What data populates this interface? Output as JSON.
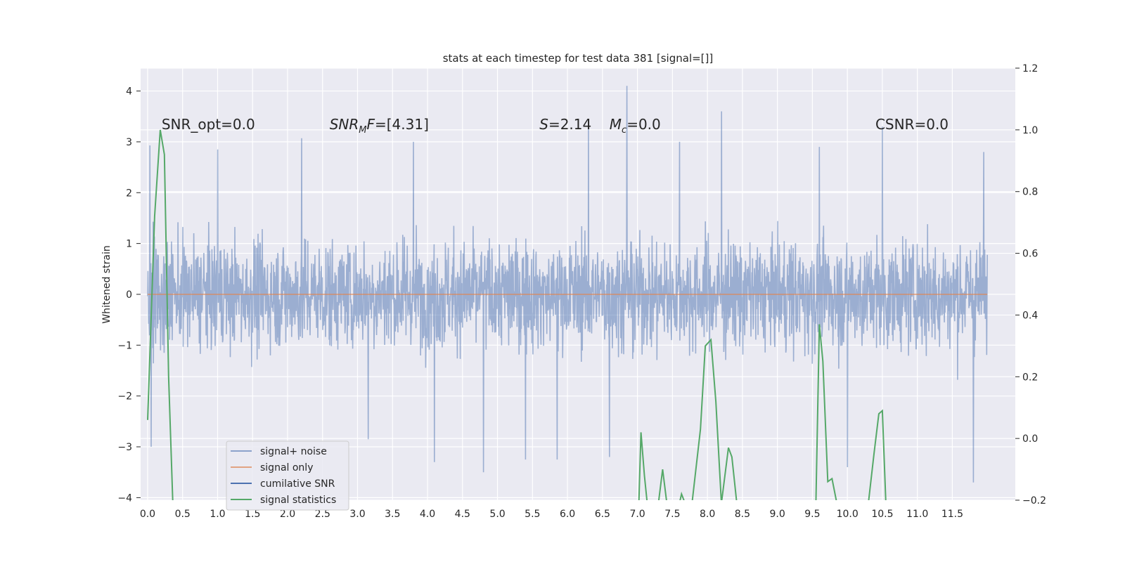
{
  "chart_data": {
    "type": "line",
    "title": "stats at each timestep for test data 381 [signal=[]]",
    "ylabel": "Whitened strain",
    "xlim": [
      -0.1,
      12.4
    ],
    "ylim": [
      -4.05,
      4.45
    ],
    "y2lim": [
      -0.2,
      1.2
    ],
    "grid": true,
    "x_ticks": [
      0.0,
      0.5,
      1.0,
      1.5,
      2.0,
      2.5,
      3.0,
      3.5,
      4.0,
      4.5,
      5.0,
      5.5,
      6.0,
      6.5,
      7.0,
      7.5,
      8.0,
      8.5,
      9.0,
      9.5,
      10.0,
      10.5,
      11.0,
      11.5
    ],
    "x_tick_labels": [
      "0.0",
      "0.5",
      "1.0",
      "1.5",
      "2.0",
      "2.5",
      "3.0",
      "3.5",
      "4.0",
      "4.5",
      "5.0",
      "5.5",
      "6.0",
      "6.5",
      "7.0",
      "7.5",
      "8.0",
      "8.5",
      "9.0",
      "9.5",
      "10.0",
      "10.5",
      "11.0",
      "11.5"
    ],
    "y_ticks": [
      4,
      3,
      2,
      1,
      0,
      -1,
      -2,
      -3,
      -4
    ],
    "y_tick_labels": [
      "4",
      "3",
      "2",
      "1",
      "0",
      "−1",
      "−2",
      "−3",
      "−4"
    ],
    "y2_ticks": [
      1.2,
      1.0,
      0.8,
      0.6,
      0.4,
      0.2,
      0.0,
      -0.2
    ],
    "y2_tick_labels": [
      "1.2",
      "1.0",
      "0.8",
      "0.6",
      "0.4",
      "0.2",
      "0.0",
      "−0.2"
    ],
    "legend_position": "lower-left",
    "annotations": [
      {
        "text": "SNR_opt=0.0",
        "x": 0.2,
        "y": 3.25
      },
      {
        "text": "SNR_MF=[4.31]",
        "x": 2.6,
        "y": 3.25
      },
      {
        "text": "S=2.14",
        "x": 5.6,
        "y": 3.25
      },
      {
        "text": "M_c=0.0",
        "x": 6.6,
        "y": 3.25
      },
      {
        "text": "CSNR=0.0",
        "x": 10.4,
        "y": 3.25
      }
    ],
    "series": [
      {
        "name": "signal+ noise",
        "axis": "left",
        "color": "#4c72b0",
        "x_range": [
          0.0,
          12.0
        ],
        "amplitude_typical": 1.5,
        "peaks": [
          [
            0.03,
            2.93
          ],
          [
            0.05,
            -3.0
          ],
          [
            1.0,
            2.85
          ],
          [
            2.2,
            3.07
          ],
          [
            3.15,
            -2.85
          ],
          [
            3.8,
            3.0
          ],
          [
            4.1,
            -3.3
          ],
          [
            4.8,
            -3.5
          ],
          [
            5.4,
            -3.25
          ],
          [
            5.85,
            -3.25
          ],
          [
            6.3,
            3.3
          ],
          [
            6.6,
            -3.2
          ],
          [
            6.85,
            4.1
          ],
          [
            7.6,
            3.0
          ],
          [
            8.2,
            3.6
          ],
          [
            9.6,
            2.9
          ],
          [
            10.0,
            -3.4
          ],
          [
            10.5,
            3.3
          ],
          [
            11.8,
            -3.7
          ],
          [
            11.95,
            2.8
          ]
        ]
      },
      {
        "name": "signal only",
        "axis": "left",
        "color": "#dd8452",
        "x": [
          0.0,
          12.0
        ],
        "y": [
          0.0,
          0.0
        ]
      },
      {
        "name": "cumilative SNR",
        "axis": "left",
        "color": "#4c72b0",
        "x": [],
        "y": []
      },
      {
        "name": "signal statistics",
        "axis": "right",
        "color": "#55a868",
        "segments": [
          {
            "x": [
              0.0,
              0.1,
              0.18,
              0.24,
              0.3,
              0.36
            ],
            "y": [
              0.06,
              0.72,
              1.0,
              0.92,
              0.2,
              -0.21
            ]
          },
          {
            "x": [
              7.02,
              7.05,
              7.1,
              7.14
            ],
            "y": [
              -0.21,
              0.02,
              -0.12,
              -0.21
            ]
          },
          {
            "x": [
              7.3,
              7.36,
              7.42
            ],
            "y": [
              -0.21,
              -0.1,
              -0.21
            ]
          },
          {
            "x": [
              7.6,
              7.63,
              7.68
            ],
            "y": [
              -0.21,
              -0.18,
              -0.21
            ]
          },
          {
            "x": [
              7.78,
              7.85,
              7.9,
              7.97,
              8.05,
              8.12,
              8.2
            ],
            "y": [
              -0.21,
              -0.07,
              0.03,
              0.3,
              0.32,
              0.12,
              -0.21
            ]
          },
          {
            "x": [
              8.2,
              8.3,
              8.35,
              8.42
            ],
            "y": [
              -0.21,
              -0.03,
              -0.06,
              -0.21
            ]
          },
          {
            "x": [
              9.55,
              9.6,
              9.65,
              9.72,
              9.78,
              9.85,
              9.9
            ],
            "y": [
              -0.21,
              0.37,
              0.25,
              -0.14,
              -0.13,
              -0.21,
              -0.21
            ]
          },
          {
            "x": [
              10.3,
              10.38,
              10.45,
              10.5,
              10.55
            ],
            "y": [
              -0.21,
              -0.05,
              0.08,
              0.09,
              -0.21
            ]
          }
        ]
      }
    ]
  }
}
